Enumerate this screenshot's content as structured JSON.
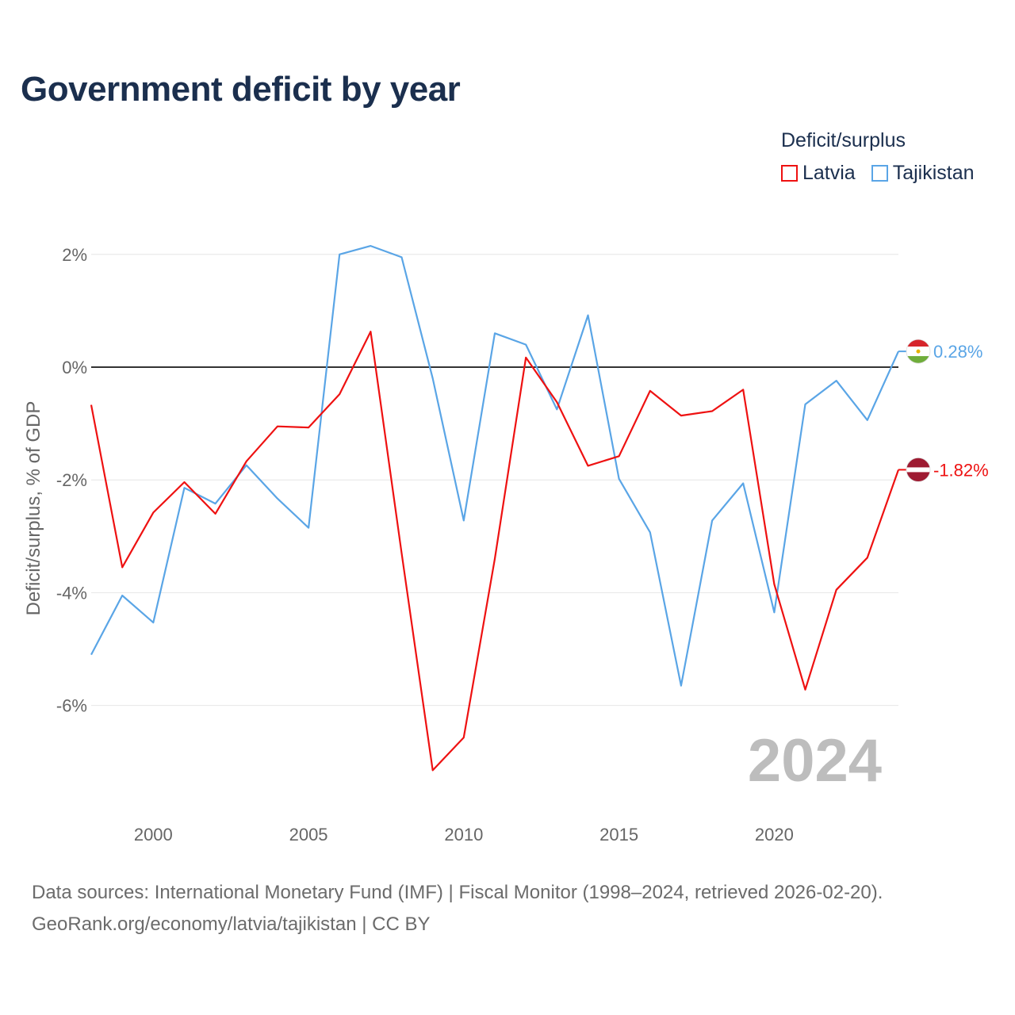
{
  "title": "Government deficit by year",
  "legend": {
    "title": "Deficit/surplus",
    "items": [
      {
        "label": "Latvia",
        "color": "#ee1111"
      },
      {
        "label": "Tajikistan",
        "color": "#5aa5e6"
      }
    ]
  },
  "source": {
    "line1": "Data sources: International Monetary Fund (IMF) | Fiscal Monitor (1998–2024, retrieved 2026-02-20).",
    "line2": "GeoRank.org/economy/latvia/tajikistan | CC BY"
  },
  "chart_data": {
    "type": "line",
    "title": "Government deficit by year",
    "ylabel": "Deficit/surplus, % of GDP",
    "xlabel": "",
    "xlim": [
      1998,
      2024
    ],
    "ylim": [
      -7.8,
      2.8
    ],
    "x_ticks": [
      2000,
      2005,
      2010,
      2015,
      2020
    ],
    "y_ticks": [
      2,
      0,
      -2,
      -4,
      -6
    ],
    "y_tick_labels": [
      "2%",
      "0%",
      "-2%",
      "-4%",
      "-6%"
    ],
    "zero_line": true,
    "grid": true,
    "watermark_year": "2024",
    "x": [
      1998,
      1999,
      2000,
      2001,
      2002,
      2003,
      2004,
      2005,
      2006,
      2007,
      2008,
      2009,
      2010,
      2011,
      2012,
      2013,
      2014,
      2015,
      2016,
      2017,
      2018,
      2019,
      2020,
      2021,
      2022,
      2023,
      2024
    ],
    "series": [
      {
        "name": "Latvia",
        "color": "#ee1111",
        "end_label": "-1.82%",
        "flag": "latvia",
        "values": [
          -0.67,
          -3.55,
          -2.58,
          -2.04,
          -2.6,
          -1.67,
          -1.05,
          -1.07,
          -0.48,
          0.63,
          -3.3,
          -7.15,
          -6.57,
          -3.4,
          0.17,
          -0.62,
          -1.75,
          -1.58,
          -0.42,
          -0.86,
          -0.78,
          -0.4,
          -3.85,
          -5.72,
          -3.95,
          -3.38,
          -1.82
        ]
      },
      {
        "name": "Tajikistan",
        "color": "#5aa5e6",
        "end_label": "0.28%",
        "flag": "tajikistan",
        "values": [
          -5.1,
          -4.05,
          -4.53,
          -2.14,
          -2.42,
          -1.74,
          -2.33,
          -2.85,
          2.0,
          2.15,
          1.95,
          -0.2,
          -2.72,
          0.6,
          0.4,
          -0.75,
          0.92,
          -1.98,
          -2.93,
          -5.65,
          -2.72,
          -2.06,
          -4.35,
          -0.66,
          -0.24,
          -0.94,
          0.28
        ]
      }
    ]
  }
}
